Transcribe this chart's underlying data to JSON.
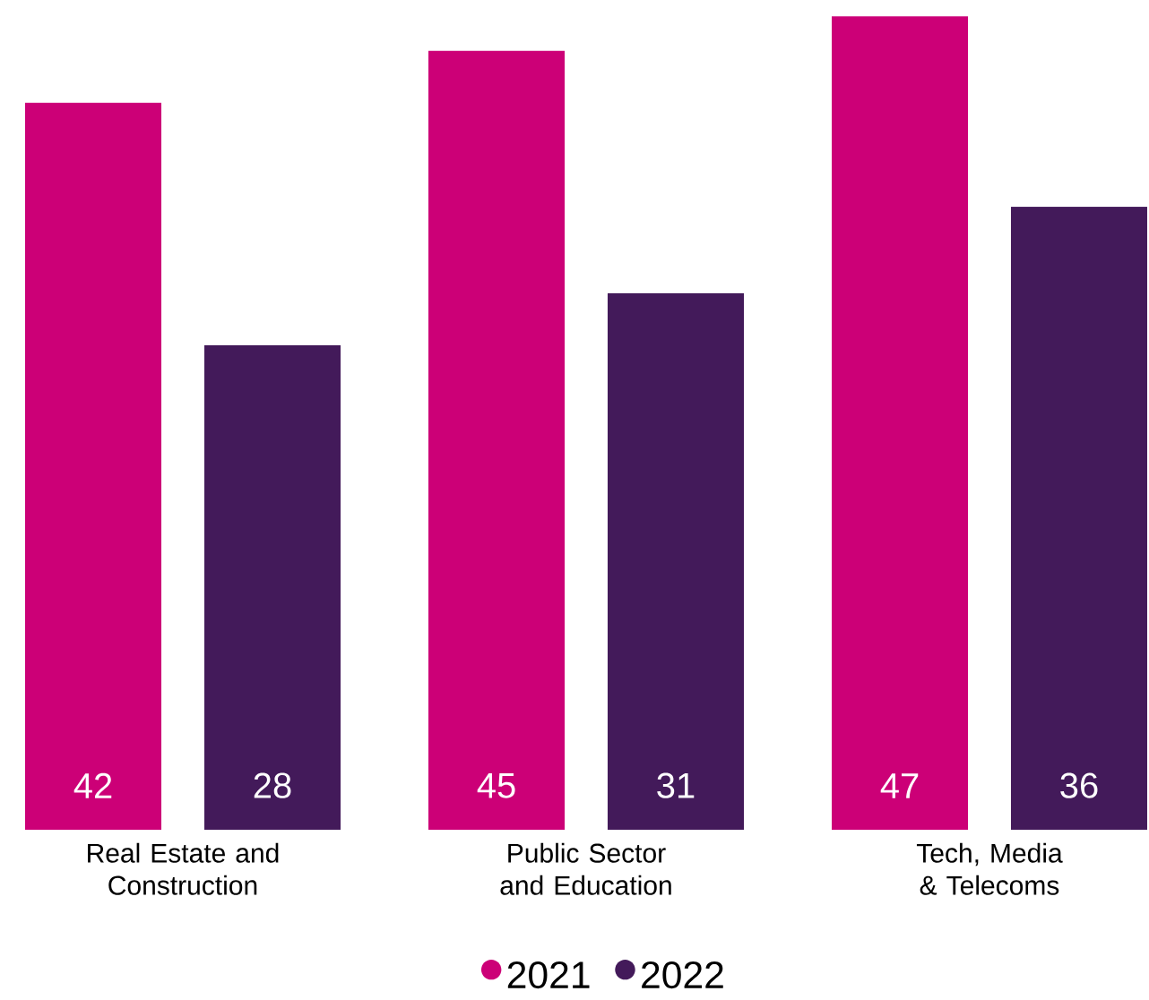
{
  "chart_data": {
    "type": "bar",
    "categories": [
      "Real Estate and Construction",
      "Public Sector and Education",
      "Tech, Media & Telecoms"
    ],
    "series": [
      {
        "name": "2021",
        "color": "#cc0077",
        "values": [
          42,
          45,
          47
        ]
      },
      {
        "name": "2022",
        "color": "#431a5a",
        "values": [
          28,
          31,
          36
        ]
      }
    ],
    "data_labels": true,
    "legend": "bottom"
  }
}
